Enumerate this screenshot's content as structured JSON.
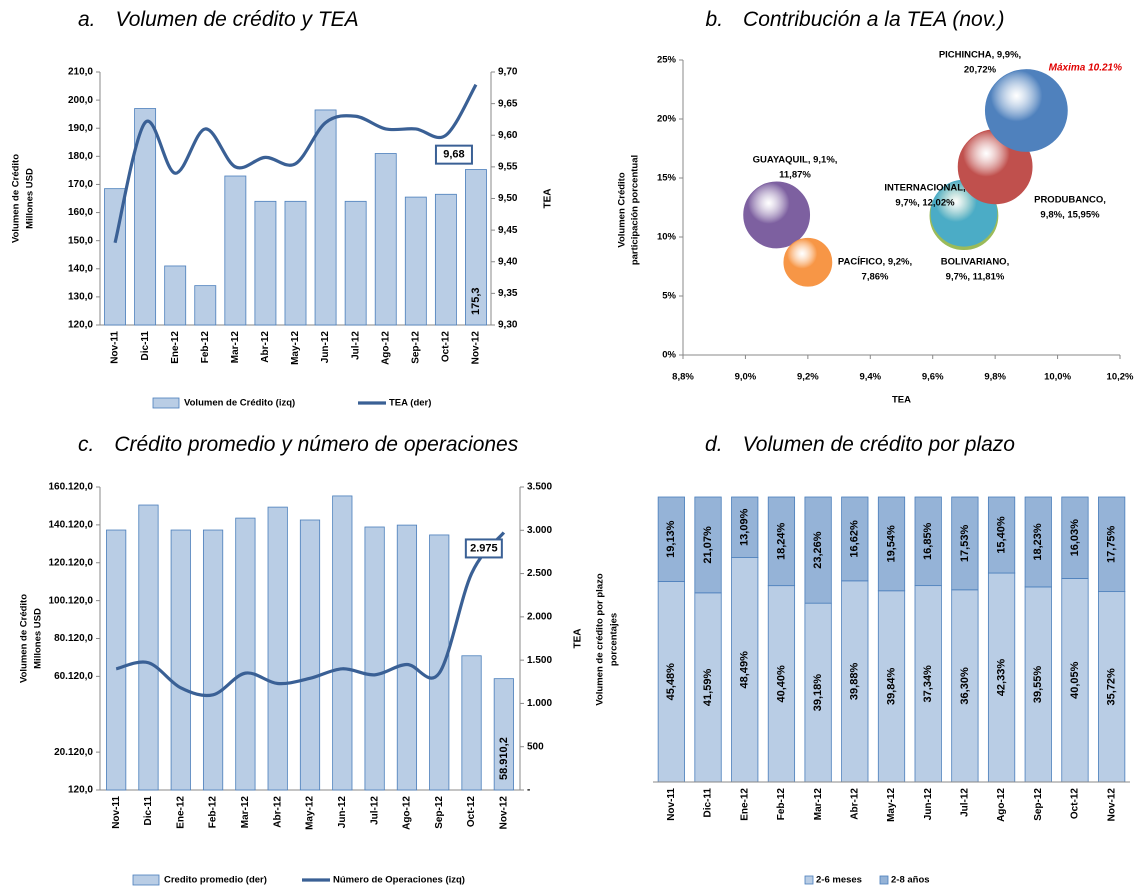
{
  "chart_data": [
    {
      "type": "bar_line",
      "label": "a.",
      "title": "Volumen de crédito y TEA",
      "categories": [
        "Nov-11",
        "Dic-11",
        "Ene-12",
        "Feb-12",
        "Mar-12",
        "Abr-12",
        "May-12",
        "Jun-12",
        "Jul-12",
        "Ago-12",
        "Sep-12",
        "Oct-12",
        "Nov-12"
      ],
      "series": [
        {
          "name": "Volumen de Crédito (izq)",
          "color": "#b9cde5",
          "values": [
            168.5,
            197,
            141,
            134,
            173,
            164,
            164,
            196.5,
            164,
            181,
            165.5,
            166.5,
            175.3
          ],
          "value_labels": [
            null,
            null,
            null,
            null,
            null,
            null,
            null,
            null,
            null,
            null,
            null,
            null,
            "175,3"
          ]
        },
        {
          "name": "TEA (der)",
          "color": "#3a6095",
          "axis": "y2",
          "values": [
            9.43,
            9.62,
            9.54,
            9.61,
            9.55,
            9.565,
            9.555,
            9.62,
            9.63,
            9.61,
            9.61,
            9.6,
            9.68
          ],
          "value_labels": [
            null,
            null,
            null,
            null,
            null,
            null,
            null,
            null,
            null,
            null,
            null,
            null,
            "9,68"
          ]
        }
      ],
      "ylim": [
        120,
        210
      ],
      "yticks": [
        {
          "value": 120,
          "label": "120,0"
        },
        {
          "value": 130,
          "label": "130,0"
        },
        {
          "value": 140,
          "label": "140,0"
        },
        {
          "value": 150,
          "label": "150,0"
        },
        {
          "value": 160,
          "label": "160,0"
        },
        {
          "value": 170,
          "label": "170,0"
        },
        {
          "value": 180,
          "label": "180,0"
        },
        {
          "value": 190,
          "label": "190,0"
        },
        {
          "value": 200,
          "label": "200,0"
        },
        {
          "value": 210,
          "label": "210,0"
        }
      ],
      "y2lim": [
        9.3,
        9.7
      ],
      "y2ticks": [
        {
          "value": 9.3,
          "label": "9,30"
        },
        {
          "value": 9.35,
          "label": "9,35"
        },
        {
          "value": 9.4,
          "label": "9,40"
        },
        {
          "value": 9.45,
          "label": "9,45"
        },
        {
          "value": 9.5,
          "label": "9,50"
        },
        {
          "value": 9.55,
          "label": "9,55"
        },
        {
          "value": 9.6,
          "label": "9,60"
        },
        {
          "value": 9.65,
          "label": "9,65"
        },
        {
          "value": 9.7,
          "label": "9,70"
        }
      ],
      "y_label": [
        "Volumen de Crédito",
        "Millones USD"
      ],
      "y2_label": "TEA"
    },
    {
      "type": "bubble",
      "label": "b.",
      "title": "Contribución a la TEA (nov.)",
      "points": [
        {
          "name": "GUAYAQUIL",
          "label": [
            "GUAYAQUIL, 9,1%,",
            "11,87%"
          ],
          "x": 9.1,
          "y": 11.87,
          "size": 33,
          "color": "#7d60a0"
        },
        {
          "name": "PACÍFICO",
          "label": [
            "PACÍFICO, 9,2%,",
            "7,86%"
          ],
          "x": 9.2,
          "y": 7.86,
          "size": 24,
          "color": "#f79646"
        },
        {
          "name": "BOLIVARIANO",
          "label": [
            "BOLIVARIANO,",
            "9,7%, 11,81%"
          ],
          "x": 9.7,
          "y": 11.81,
          "size": 34,
          "color": "#9bbb59"
        },
        {
          "name": "INTERNACIONAL",
          "label": [
            "INTERNACIONAL,",
            "9,7%, 12,02%"
          ],
          "x": 9.7,
          "y": 12.02,
          "size": 33,
          "color": "#4bacc6"
        },
        {
          "name": "PRODUBANCO",
          "label": [
            "PRODUBANCO,",
            "9,8%, 15,95%"
          ],
          "x": 9.8,
          "y": 15.95,
          "size": 37,
          "color": "#c0504d"
        },
        {
          "name": "PICHINCHA",
          "label": [
            "PICHINCHA, 9,9%,",
            "20,72%"
          ],
          "x": 9.9,
          "y": 20.72,
          "size": 41,
          "color": "#4f81bd"
        }
      ],
      "annotation": "Máxima 10.21%",
      "xlim": [
        8.8,
        10.2
      ],
      "xticks": [
        {
          "value": 8.8,
          "label": "8,8%"
        },
        {
          "value": 9.0,
          "label": "9,0%"
        },
        {
          "value": 9.2,
          "label": "9,2%"
        },
        {
          "value": 9.4,
          "label": "9,4%"
        },
        {
          "value": 9.6,
          "label": "9,6%"
        },
        {
          "value": 9.8,
          "label": "9,8%"
        },
        {
          "value": 10.0,
          "label": "10,0%"
        },
        {
          "value": 10.2,
          "label": "10,2%"
        }
      ],
      "ylim": [
        0,
        25
      ],
      "yticks": [
        {
          "value": 0,
          "label": "0%"
        },
        {
          "value": 5,
          "label": "5%"
        },
        {
          "value": 10,
          "label": "10%"
        },
        {
          "value": 15,
          "label": "15%"
        },
        {
          "value": 20,
          "label": "20%"
        },
        {
          "value": 25,
          "label": "25%"
        }
      ],
      "x_label": "TEA",
      "y_label": [
        "Volumen Crédito",
        "participación porcentual"
      ]
    },
    {
      "type": "bar_line",
      "label": "c.",
      "title": "Crédito promedio y número de operaciones",
      "categories": [
        "Nov-11",
        "Dic-11",
        "Ene-12",
        "Feb-12",
        "Mar-12",
        "Abr-12",
        "May-12",
        "Jun-12",
        "Jul-12",
        "Ago-12",
        "Sep-12",
        "Oct-12",
        "Nov-12"
      ],
      "series": [
        {
          "name": "Credito promedio (der)",
          "color": "#b9cde5",
          "values": [
            137400,
            150600,
            137400,
            137400,
            143700,
            149500,
            142700,
            155400,
            139000,
            140000,
            134800,
            71000,
            58910.2
          ],
          "value_labels": [
            null,
            null,
            null,
            null,
            null,
            null,
            null,
            null,
            null,
            null,
            null,
            null,
            "58.910,2"
          ]
        },
        {
          "name": "Número de Operaciones (izq)",
          "color": "#3a6095",
          "axis": "y2",
          "values": [
            1400,
            1470,
            1180,
            1100,
            1350,
            1230,
            1290,
            1400,
            1330,
            1450,
            1350,
            2500,
            2975
          ],
          "value_labels": [
            null,
            null,
            null,
            null,
            null,
            null,
            null,
            null,
            null,
            null,
            null,
            null,
            "2.975"
          ]
        }
      ],
      "ylim": [
        120,
        160120
      ],
      "yticks": [
        {
          "value": 120,
          "label": "120,0"
        },
        {
          "value": 20120,
          "label": "20.120,0"
        },
        {
          "value": 60120,
          "label": "60.120,0"
        },
        {
          "value": 80120,
          "label": "80.120,0"
        },
        {
          "value": 100120,
          "label": "100.120,0"
        },
        {
          "value": 120120,
          "label": "120.120,0"
        },
        {
          "value": 140120,
          "label": "140.120,0"
        },
        {
          "value": 160120,
          "label": "160.120,0"
        }
      ],
      "y2lim": [
        0,
        3500
      ],
      "y2ticks": [
        {
          "value": 0,
          "label": "-"
        },
        500,
        {
          "value": 1000,
          "label": "1.000"
        },
        {
          "value": 1500,
          "label": "1.500"
        },
        {
          "value": 2000,
          "label": "2.000"
        },
        {
          "value": 2500,
          "label": "2.500"
        },
        {
          "value": 3000,
          "label": "3.000"
        },
        {
          "value": 3500,
          "label": "3.500"
        }
      ],
      "y_label": [
        "Volumen de Crédito",
        "Millones USD"
      ],
      "y2_label": "TEA"
    },
    {
      "type": "stacked_percent",
      "label": "d.",
      "title": "Volumen de crédito por plazo",
      "categories": [
        "Nov-11",
        "Dic-11",
        "Ene-12",
        "Feb-12",
        "Mar-12",
        "Abr-12",
        "May-12",
        "Jun-12",
        "Jul-12",
        "Ago-12",
        "Sep-12",
        "Oct-12",
        "Nov-12"
      ],
      "series": [
        {
          "name": "2-6 meses",
          "color": "#b9cde5",
          "values": [
            45.48,
            41.59,
            48.49,
            40.4,
            39.18,
            39.88,
            39.84,
            37.34,
            36.3,
            42.33,
            39.55,
            40.05,
            35.72
          ],
          "value_labels": [
            "45,48%",
            "41,59%",
            "48,49%",
            "40,40%",
            "39,18%",
            "39,88%",
            "39,84%",
            "37,34%",
            "36,30%",
            "42,33%",
            "39,55%",
            "40,05%",
            "35,72%"
          ]
        },
        {
          "name": "2-8 años",
          "color": "#95b3d7",
          "values": [
            19.13,
            21.07,
            13.09,
            18.24,
            23.26,
            16.62,
            19.54,
            16.85,
            17.53,
            15.4,
            18.23,
            16.03,
            17.75
          ],
          "value_labels": [
            "19,13%",
            "21,07%",
            "13,09%",
            "18,24%",
            "23,26%",
            "16,62%",
            "19,54%",
            "16,85%",
            "17,53%",
            "15,40%",
            "18,23%",
            "16,03%",
            "17,75%"
          ]
        }
      ],
      "y_label": [
        "Volumen de crédito por plazo",
        "porcentajes"
      ]
    }
  ]
}
